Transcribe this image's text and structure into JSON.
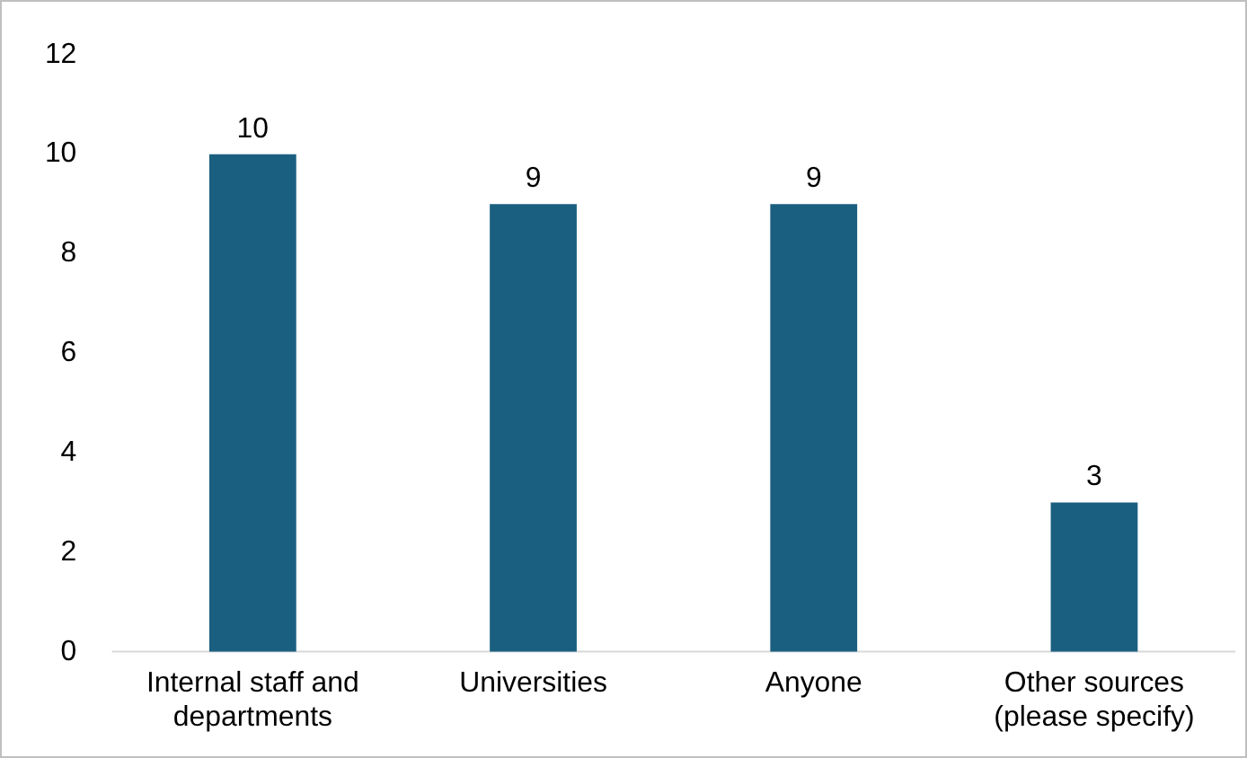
{
  "chart_data": {
    "type": "bar",
    "categories": [
      "Internal staff and departments",
      "Universities",
      "Anyone",
      "Other sources (please specify)"
    ],
    "values": [
      10,
      9,
      9,
      3
    ],
    "color": "#1b5f80",
    "ylim": [
      0,
      12
    ],
    "yticks": [
      0,
      2,
      4,
      6,
      8,
      10,
      12
    ],
    "grid": false,
    "legend": false,
    "data_labels": true
  }
}
